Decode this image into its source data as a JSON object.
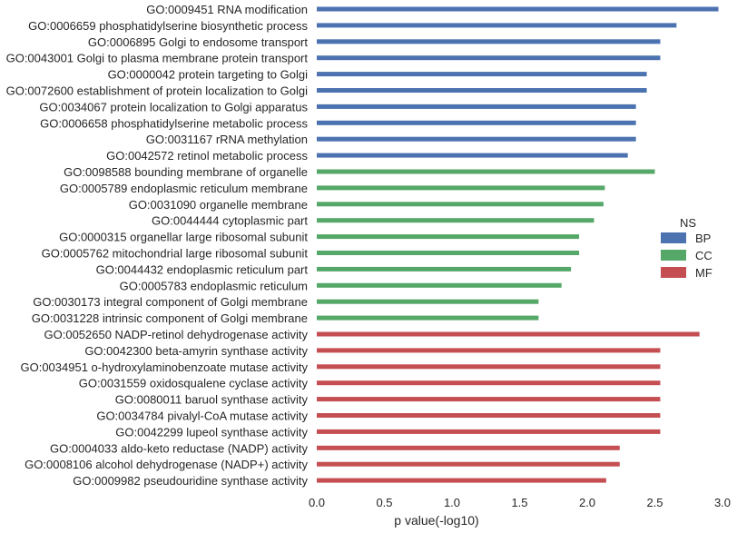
{
  "chart_data": {
    "type": "bar",
    "orientation": "horizontal",
    "xlabel": "p value(-log10)",
    "ylabel": "",
    "xlim": [
      0.0,
      3.0
    ],
    "xticks": [
      "0.0",
      "0.5",
      "1.0",
      "1.5",
      "2.0",
      "2.5",
      "3.0"
    ],
    "grid": false,
    "legend": {
      "title": "NS",
      "placement": "right",
      "entries": [
        {
          "name": "BP",
          "color": "#4c72b0"
        },
        {
          "name": "CC",
          "color": "#55a868"
        },
        {
          "name": "MF",
          "color": "#c44e52"
        }
      ]
    },
    "series": [
      {
        "name": "BP",
        "color": "#4c72b0",
        "points": [
          {
            "label": "GO:0009451 RNA modification",
            "value": 2.97
          },
          {
            "label": "GO:0006659 phosphatidylserine biosynthetic process",
            "value": 2.66
          },
          {
            "label": "GO:0006895 Golgi to endosome transport",
            "value": 2.54
          },
          {
            "label": "GO:0043001 Golgi to plasma membrane protein transport",
            "value": 2.54
          },
          {
            "label": "GO:0000042 protein targeting to Golgi",
            "value": 2.44
          },
          {
            "label": "GO:0072600 establishment of protein localization to Golgi",
            "value": 2.44
          },
          {
            "label": "GO:0034067 protein localization to Golgi apparatus",
            "value": 2.36
          },
          {
            "label": "GO:0006658 phosphatidylserine metabolic process",
            "value": 2.36
          },
          {
            "label": "GO:0031167 rRNA methylation",
            "value": 2.36
          },
          {
            "label": "GO:0042572 retinol metabolic process",
            "value": 2.3
          }
        ]
      },
      {
        "name": "CC",
        "color": "#55a868",
        "points": [
          {
            "label": "GO:0098588 bounding membrane of organelle",
            "value": 2.5
          },
          {
            "label": "GO:0005789 endoplasmic reticulum membrane",
            "value": 2.13
          },
          {
            "label": "GO:0031090 organelle membrane",
            "value": 2.12
          },
          {
            "label": "GO:0044444 cytoplasmic part",
            "value": 2.05
          },
          {
            "label": "GO:0000315 organellar large ribosomal subunit",
            "value": 1.94
          },
          {
            "label": "GO:0005762 mitochondrial large ribosomal subunit",
            "value": 1.94
          },
          {
            "label": "GO:0044432 endoplasmic reticulum part",
            "value": 1.88
          },
          {
            "label": "GO:0005783 endoplasmic reticulum",
            "value": 1.81
          },
          {
            "label": "GO:0030173 integral component of Golgi membrane",
            "value": 1.64
          },
          {
            "label": "GO:0031228 intrinsic component of Golgi membrane",
            "value": 1.64
          }
        ]
      },
      {
        "name": "MF",
        "color": "#c44e52",
        "points": [
          {
            "label": "GO:0052650 NADP-retinol dehydrogenase activity",
            "value": 2.83
          },
          {
            "label": "GO:0042300 beta-amyrin synthase activity",
            "value": 2.54
          },
          {
            "label": "GO:0034951 o-hydroxylaminobenzoate mutase activity",
            "value": 2.54
          },
          {
            "label": "GO:0031559 oxidosqualene cyclase activity",
            "value": 2.54
          },
          {
            "label": "GO:0080011 baruol synthase activity",
            "value": 2.54
          },
          {
            "label": "GO:0034784 pivalyl-CoA mutase activity",
            "value": 2.54
          },
          {
            "label": "GO:0042299 lupeol synthase activity",
            "value": 2.54
          },
          {
            "label": "GO:0004033 aldo-keto reductase (NADP) activity",
            "value": 2.24
          },
          {
            "label": "GO:0008106 alcohol dehydrogenase (NADP+) activity",
            "value": 2.24
          },
          {
            "label": "GO:0009982 pseudouridine synthase activity",
            "value": 2.14
          }
        ]
      }
    ]
  }
}
